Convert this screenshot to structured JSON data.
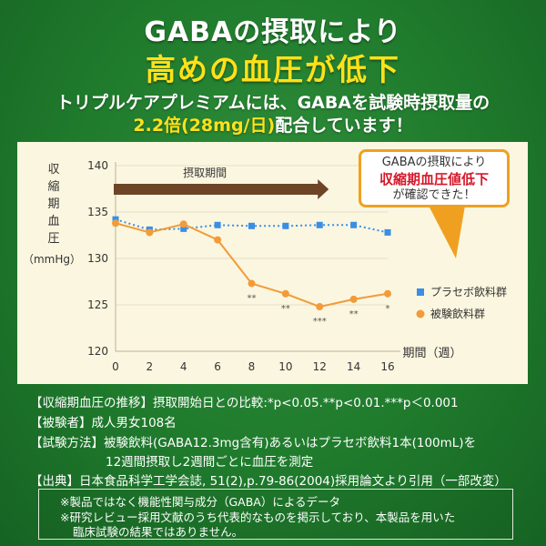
{
  "header": {
    "line1": "GABAの摂取により",
    "line2": "高めの血圧が低下",
    "line3": "トリプルケアプレミアムには、GABAを試験時摂取量の",
    "line4_highlight": "2.2倍(28mg/日)",
    "line4_rest": "配合しています！"
  },
  "callout": {
    "line1": "GABAの摂取により",
    "line2": "収縮期血圧値低下",
    "line3": "が確認できた！"
  },
  "chart_data": {
    "type": "line",
    "ylabel": "収縮期血圧",
    "yunit": "（mmHg）",
    "xlabel": "期間（週）",
    "ylim": [
      120,
      140
    ],
    "yticks": [
      120,
      125,
      130,
      135,
      140
    ],
    "x": [
      0,
      2,
      4,
      6,
      8,
      10,
      12,
      14,
      16
    ],
    "intake_period_label": "摂取期間",
    "intake_period_range": [
      0,
      12
    ],
    "series": [
      {
        "name": "プラセボ飲料群",
        "color": "#3a8ee6",
        "marker": "square",
        "style": "dotted",
        "values": [
          134.2,
          133.1,
          133.2,
          133.6,
          133.5,
          133.5,
          133.6,
          133.6,
          132.8
        ]
      },
      {
        "name": "被験飲料群",
        "color": "#f29b38",
        "marker": "circle",
        "style": "solid",
        "values": [
          133.8,
          132.8,
          133.7,
          132.0,
          127.3,
          126.2,
          124.8,
          125.6,
          126.2
        ]
      }
    ],
    "annotations": [
      {
        "x": 8,
        "text": "**"
      },
      {
        "x": 10,
        "text": "**"
      },
      {
        "x": 12,
        "text": "***"
      },
      {
        "x": 14,
        "text": "**"
      },
      {
        "x": 16,
        "text": "*"
      }
    ],
    "legend_position": "right"
  },
  "notes": {
    "n1": "【収縮期血圧の推移】摂取開始日との比較:*p<0.05.**p<0.01.***p＜0.001",
    "n2": "【被験者】成人男女108名",
    "n3": "【試験方法】被験飲料(GABA12.3mg含有)あるいはプラセボ飲料1本(100mL)を",
    "n4": "12週間摂取し2週間ごとに血圧を測定",
    "n5": "【出典】日本食品科学工学会誌, 51(2),p.79-86(2004)採用論文より引用（一部改変）"
  },
  "disclaimer": {
    "d1": "※製品ではなく機能性関与成分（GABA）によるデータ",
    "d2": "※研究レビュー採用文献のうち代表的なものを掲示しており、本製品を用いた",
    "d3": "臨床試験の結果ではありません。"
  }
}
